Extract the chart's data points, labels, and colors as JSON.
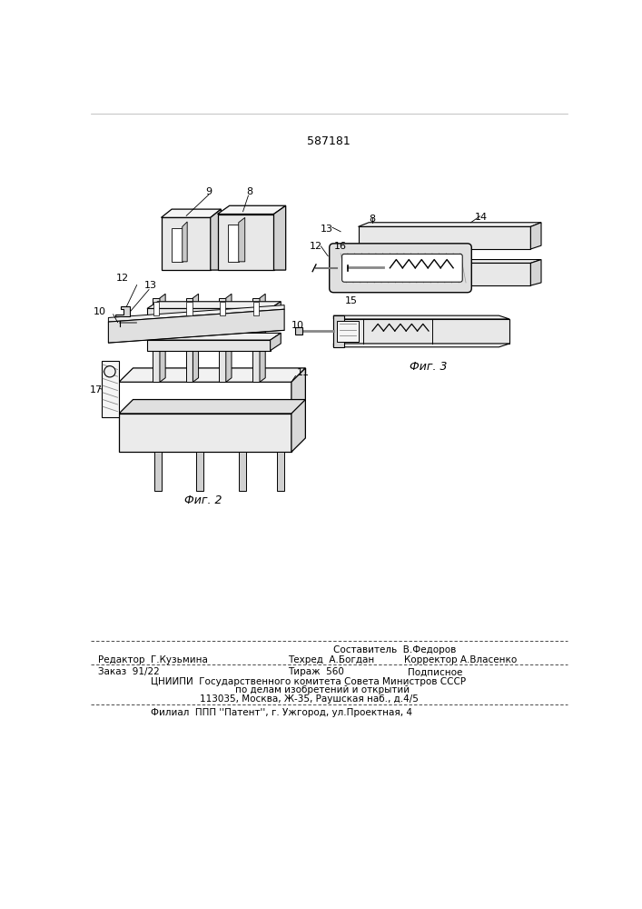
{
  "patent_number": "587181",
  "fig2_label": "Фиг. 2",
  "fig3_label": "Фиг. 3",
  "editor_line": "Редактор  Г.Кузьмина",
  "compiler_line": "Составитель  В.Федоров",
  "techred_line": "Техред  А.Богдан",
  "corrector_line": "Корректор А.Власенко",
  "order_line": "Заказ  91/22",
  "tirazh_line": "Тираж  560",
  "podpisnoe_line": "Подписное",
  "cniip_line": "ЦНИИПИ  Государственного комитета Совета Министров СССР",
  "affairs_line": "по делам изобретений и открытий",
  "address_line": "113035, Москва, Ж-35, Раушская наб., д.4/5",
  "filial_line": "Филиал  ППП ''Патент'', г. Ужгород, ул.Проектная, 4",
  "bg_color": "#ffffff",
  "text_color": "#000000"
}
